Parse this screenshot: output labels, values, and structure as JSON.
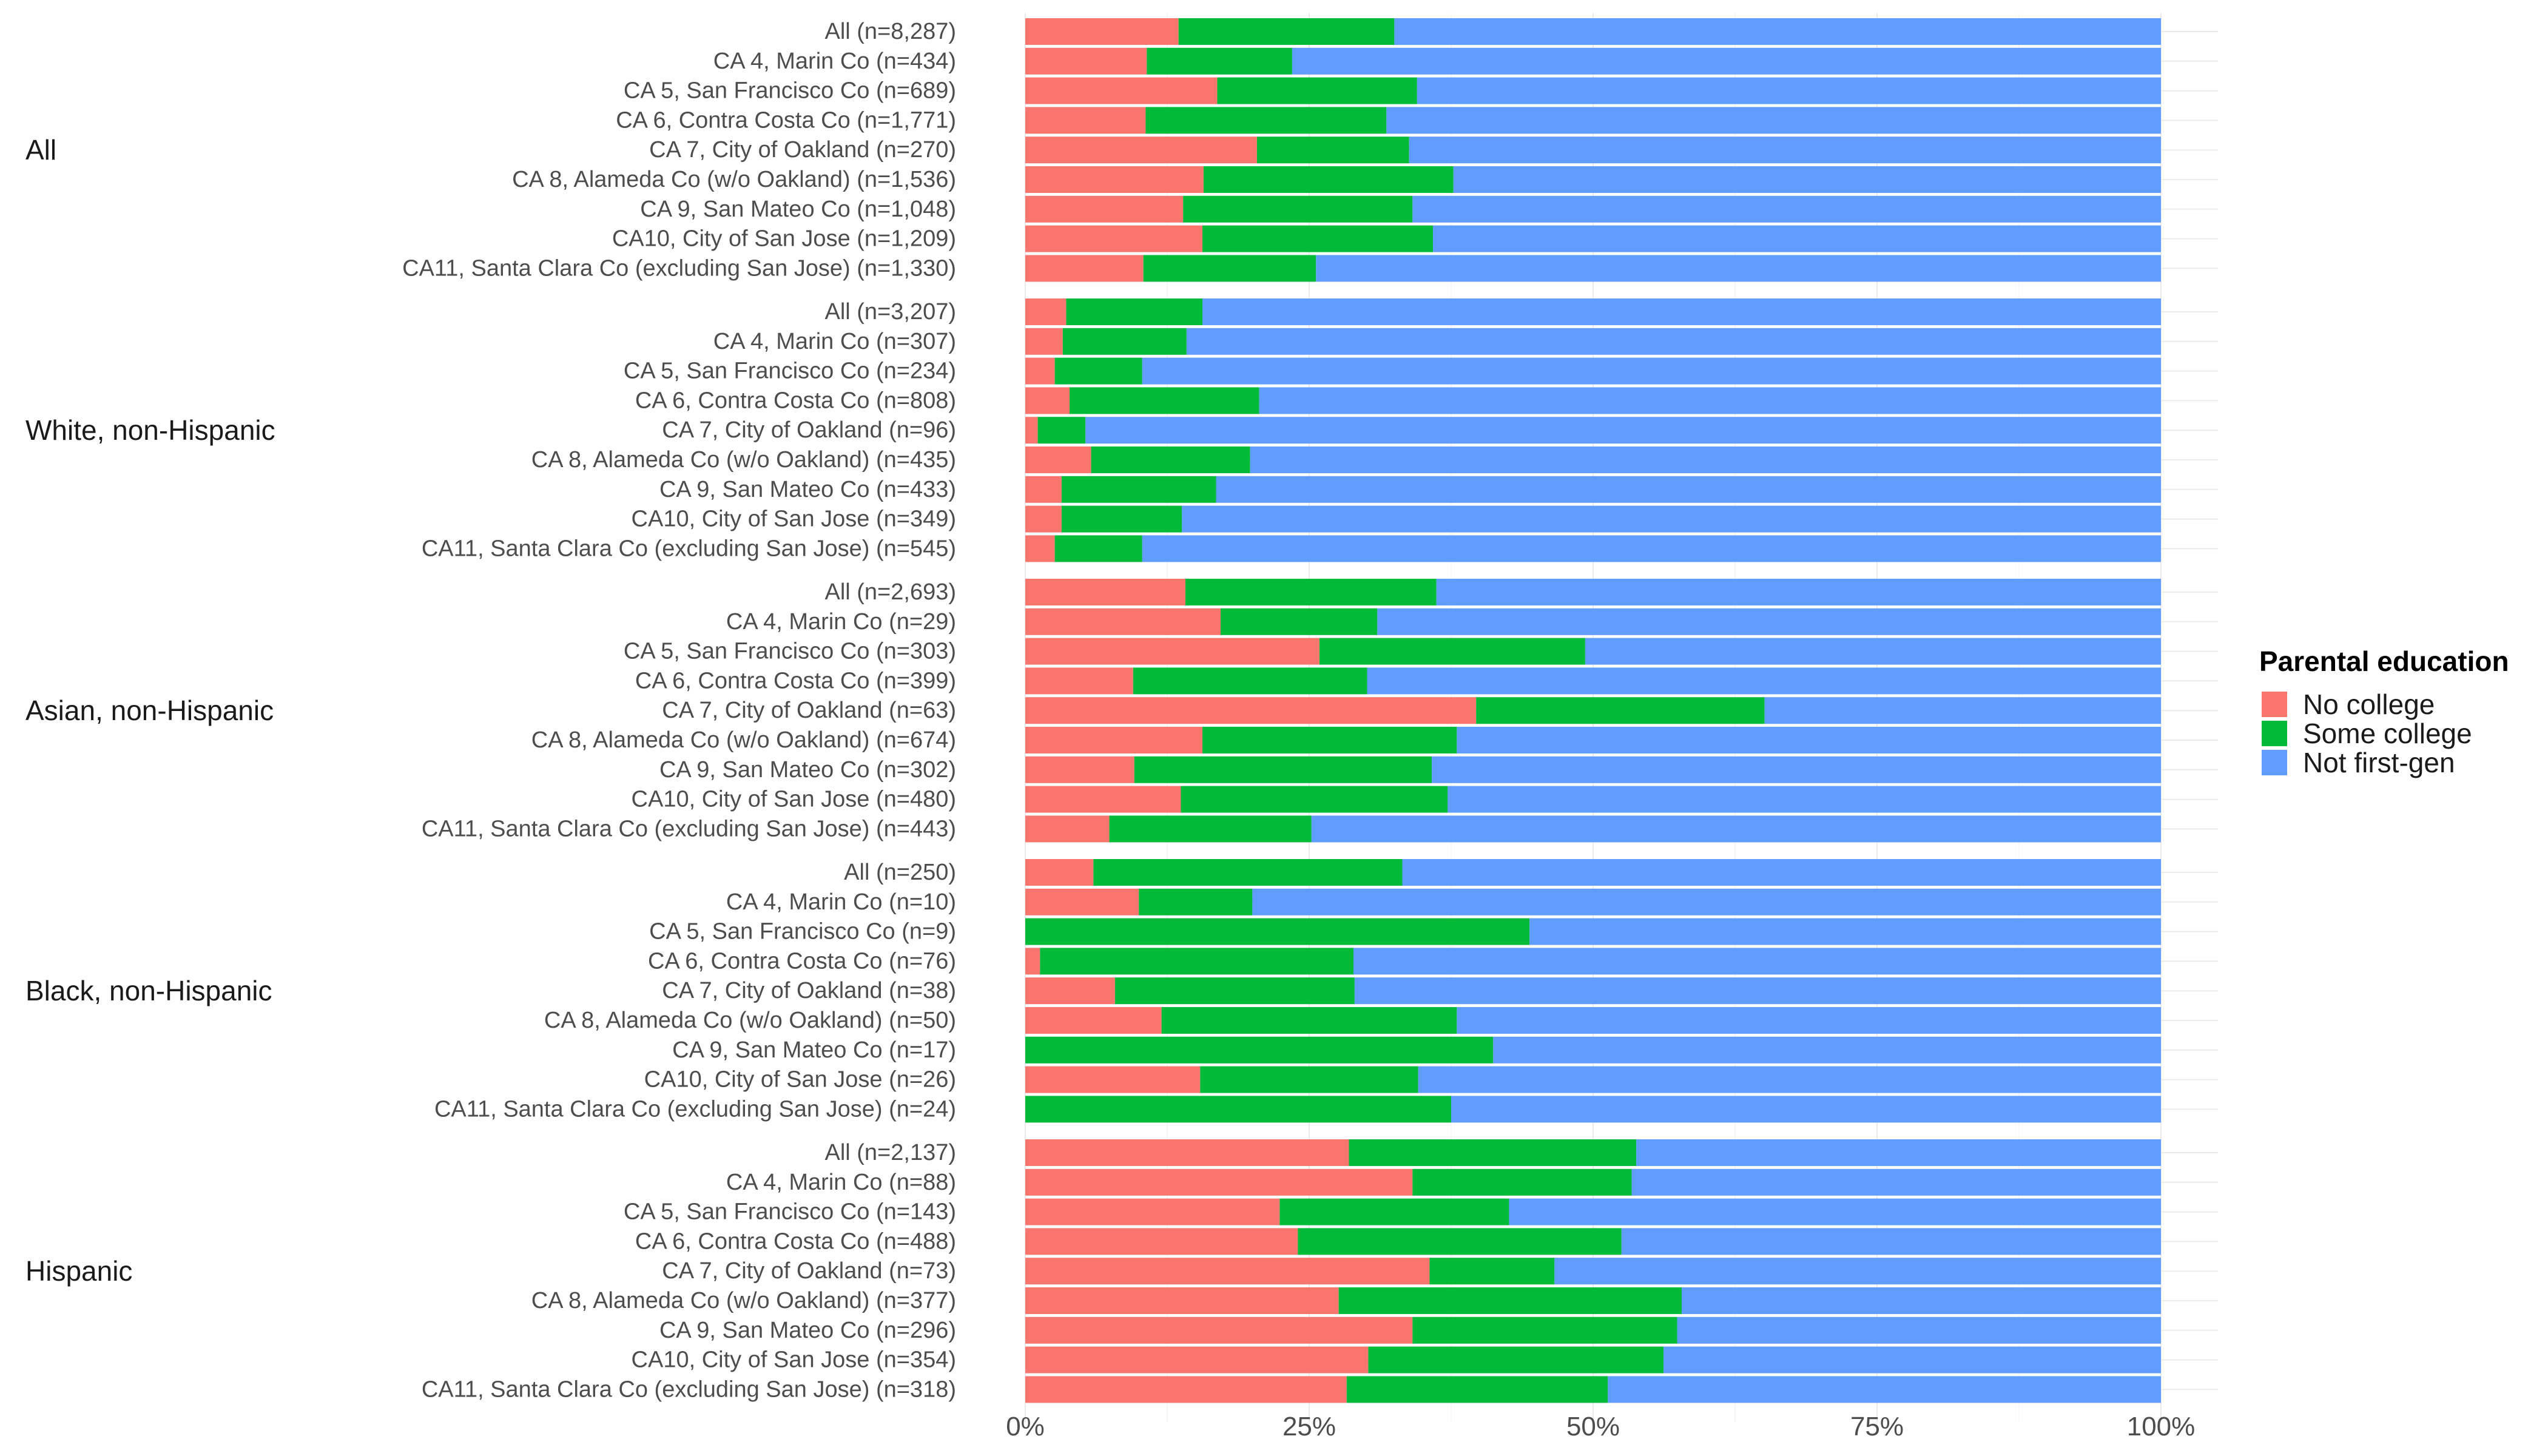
{
  "chart_data": {
    "type": "bar",
    "orientation": "horizontal",
    "stacked": true,
    "xlim": [
      0,
      1
    ],
    "x_ticks": [
      "0%",
      "25%",
      "50%",
      "75%",
      "100%"
    ],
    "x_tick_values": [
      0,
      0.25,
      0.5,
      0.75,
      1
    ],
    "grid": true,
    "legend": {
      "title": "Parental education",
      "position": "right",
      "items": [
        {
          "label": "No college",
          "color": "#F8766D"
        },
        {
          "label": "Some college",
          "color": "#00BA38"
        },
        {
          "label": "Not first-gen",
          "color": "#619CFF"
        }
      ]
    },
    "groups": [
      {
        "name": "All",
        "rows": [
          {
            "label": "All (n=8,287)",
            "values": [
              0.135,
              0.19,
              0.675
            ]
          },
          {
            "label": "CA 4, Marin Co (n=434)",
            "values": [
              0.107,
              0.128,
              0.765
            ]
          },
          {
            "label": "CA 5, San Francisco Co (n=689)",
            "values": [
              0.169,
              0.176,
              0.655
            ]
          },
          {
            "label": "CA 6, Contra Costa Co (n=1,771)",
            "values": [
              0.106,
              0.212,
              0.682
            ]
          },
          {
            "label": "CA 7, City of Oakland (n=270)",
            "values": [
              0.204,
              0.134,
              0.662
            ]
          },
          {
            "label": "CA 8, Alameda Co (w/o Oakland) (n=1,536)",
            "values": [
              0.157,
              0.22,
              0.623
            ]
          },
          {
            "label": "CA 9, San Mateo Co (n=1,048)",
            "values": [
              0.139,
              0.202,
              0.659
            ]
          },
          {
            "label": "CA10, City of San Jose (n=1,209)",
            "values": [
              0.156,
              0.203,
              0.641
            ]
          },
          {
            "label": "CA11, Santa Clara Co (excluding San Jose) (n=1,330)",
            "values": [
              0.104,
              0.152,
              0.744
            ]
          }
        ]
      },
      {
        "name": "White, non-Hispanic",
        "rows": [
          {
            "label": "All (n=3,207)",
            "values": [
              0.036,
              0.12,
              0.844
            ]
          },
          {
            "label": "CA 4, Marin Co (n=307)",
            "values": [
              0.033,
              0.109,
              0.858
            ]
          },
          {
            "label": "CA 5, San Francisco Co (n=234)",
            "values": [
              0.026,
              0.077,
              0.897
            ]
          },
          {
            "label": "CA 6, Contra Costa Co (n=808)",
            "values": [
              0.039,
              0.167,
              0.794
            ]
          },
          {
            "label": "CA 7, City of Oakland (n=96)",
            "values": [
              0.011,
              0.042,
              0.947
            ]
          },
          {
            "label": "CA 8, Alameda Co (w/o Oakland) (n=435)",
            "values": [
              0.058,
              0.14,
              0.802
            ]
          },
          {
            "label": "CA 9, San Mateo Co (n=433)",
            "values": [
              0.032,
              0.136,
              0.832
            ]
          },
          {
            "label": "CA10, City of San Jose (n=349)",
            "values": [
              0.032,
              0.106,
              0.862
            ]
          },
          {
            "label": "CA11, Santa Clara Co (excluding San Jose) (n=545)",
            "values": [
              0.026,
              0.077,
              0.897
            ]
          }
        ]
      },
      {
        "name": "Asian, non-Hispanic",
        "rows": [
          {
            "label": "All (n=2,693)",
            "values": [
              0.141,
              0.221,
              0.638
            ]
          },
          {
            "label": "CA 4, Marin Co (n=29)",
            "values": [
              0.172,
              0.138,
              0.69
            ]
          },
          {
            "label": "CA 5, San Francisco Co (n=303)",
            "values": [
              0.259,
              0.234,
              0.507
            ]
          },
          {
            "label": "CA 6, Contra Costa Co (n=399)",
            "values": [
              0.095,
              0.206,
              0.699
            ]
          },
          {
            "label": "CA 7, City of Oakland (n=63)",
            "values": [
              0.397,
              0.254,
              0.349
            ]
          },
          {
            "label": "CA 8, Alameda Co (w/o Oakland) (n=674)",
            "values": [
              0.156,
              0.224,
              0.62
            ]
          },
          {
            "label": "CA 9, San Mateo Co (n=302)",
            "values": [
              0.096,
              0.262,
              0.642
            ]
          },
          {
            "label": "CA10, City of San Jose (n=480)",
            "values": [
              0.137,
              0.235,
              0.628
            ]
          },
          {
            "label": "CA11, Santa Clara Co (excluding San Jose) (n=443)",
            "values": [
              0.074,
              0.178,
              0.748
            ]
          }
        ]
      },
      {
        "name": "Black, non-Hispanic",
        "rows": [
          {
            "label": "All (n=250)",
            "values": [
              0.06,
              0.272,
              0.668
            ]
          },
          {
            "label": "CA 4, Marin Co (n=10)",
            "values": [
              0.1,
              0.1,
              0.8
            ]
          },
          {
            "label": "CA 5, San Francisco Co (n=9)",
            "values": [
              0,
              0.444,
              0.556
            ]
          },
          {
            "label": "CA 6, Contra Costa Co (n=76)",
            "values": [
              0.013,
              0.276,
              0.711
            ]
          },
          {
            "label": "CA 7, City of Oakland (n=38)",
            "values": [
              0.079,
              0.211,
              0.71
            ]
          },
          {
            "label": "CA 8, Alameda Co (w/o Oakland) (n=50)",
            "values": [
              0.12,
              0.26,
              0.62
            ]
          },
          {
            "label": "CA 9, San Mateo Co (n=17)",
            "values": [
              0,
              0.412,
              0.588
            ]
          },
          {
            "label": "CA10, City of San Jose (n=26)",
            "values": [
              0.154,
              0.192,
              0.654
            ]
          },
          {
            "label": "CA11, Santa Clara Co (excluding San Jose) (n=24)",
            "values": [
              0,
              0.375,
              0.625
            ]
          }
        ]
      },
      {
        "name": "Hispanic",
        "rows": [
          {
            "label": "All (n=2,137)",
            "values": [
              0.285,
              0.253,
              0.462
            ]
          },
          {
            "label": "CA 4, Marin Co (n=88)",
            "values": [
              0.341,
              0.193,
              0.466
            ]
          },
          {
            "label": "CA 5, San Francisco Co (n=143)",
            "values": [
              0.224,
              0.202,
              0.574
            ]
          },
          {
            "label": "CA 6, Contra Costa Co (n=488)",
            "values": [
              0.24,
              0.285,
              0.475
            ]
          },
          {
            "label": "CA 7, City of Oakland (n=73)",
            "values": [
              0.356,
              0.11,
              0.534
            ]
          },
          {
            "label": "CA 8, Alameda Co (w/o Oakland) (n=377)",
            "values": [
              0.276,
              0.302,
              0.422
            ]
          },
          {
            "label": "CA 9, San Mateo Co (n=296)",
            "values": [
              0.341,
              0.233,
              0.426
            ]
          },
          {
            "label": "CA10, City of San Jose (n=354)",
            "values": [
              0.302,
              0.26,
              0.438
            ]
          },
          {
            "label": "CA11, Santa Clara Co (excluding San Jose) (n=318)",
            "values": [
              0.283,
              0.23,
              0.487
            ]
          }
        ]
      }
    ]
  }
}
